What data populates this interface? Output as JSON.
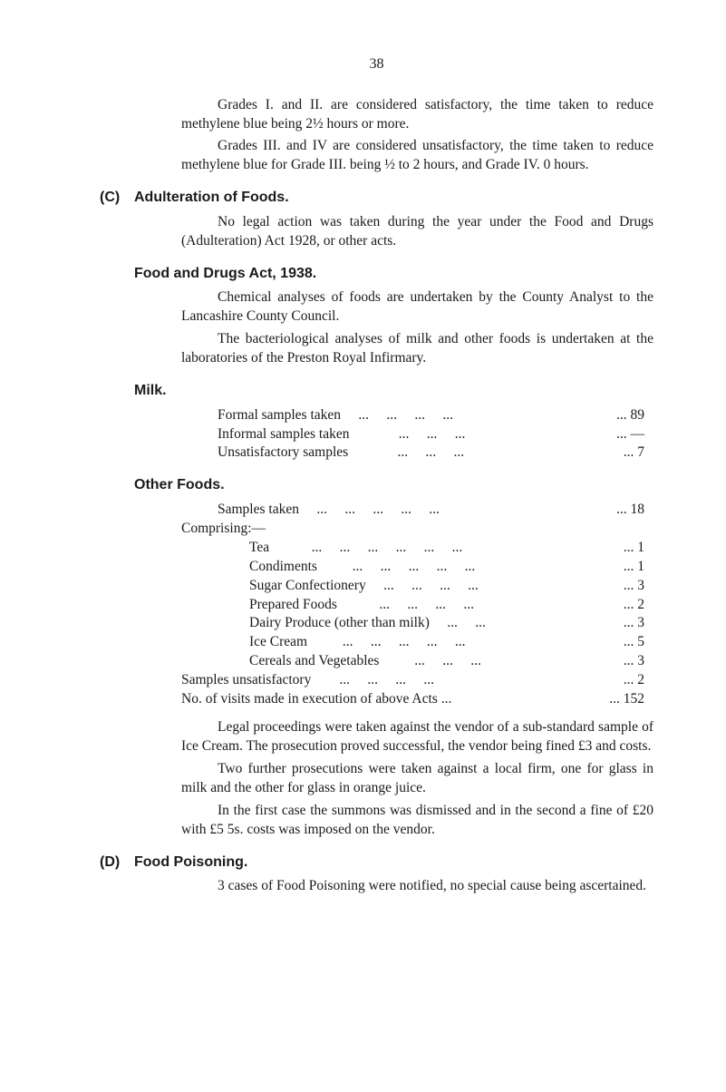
{
  "page_number": "38",
  "para1": "Grades I. and II. are considered satisfactory, the time taken to reduce methylene blue being 2½ hours or more.",
  "para2": "Grades III. and IV are considered unsatisfactory, the time taken to reduce methylene blue for Grade III. being ½ to 2 hours, and Grade IV. 0 hours.",
  "sectionC_marker": "(C)",
  "sectionC_title": "Adulteration of Foods.",
  "sectionC_para": "No legal action was taken during the year under the Food and Drugs (Adulteration) Act 1928, or other acts.",
  "foodDrugs_title": "Food and Drugs Act, 1938.",
  "foodDrugs_para1": "Chemical analyses of foods are undertaken by the County Analyst to the Lancashire County Council.",
  "foodDrugs_para2": "The bacteriological analyses of milk and other foods is undertaken at the laboratories of the Preston Royal Infirmary.",
  "milk_title": "Milk.",
  "milk_rows": [
    {
      "label": "Formal samples taken     ...     ...     ...     ...",
      "value": "...   89"
    },
    {
      "label": "Informal samples taken              ...     ...     ...",
      "value": "...   —"
    },
    {
      "label": "Unsatisfactory samples              ...     ...     ...",
      "value": "...     7"
    }
  ],
  "other_title": "Other Foods.",
  "other_samples": {
    "label": "Samples taken     ...     ...     ...     ...     ...",
    "value": "...     18"
  },
  "comprising": "Comprising:—",
  "other_rows": [
    {
      "label": "Tea            ...     ...     ...     ...     ...     ...",
      "value": "...       1"
    },
    {
      "label": "Condiments          ...     ...     ...     ...     ...",
      "value": "...       1"
    },
    {
      "label": "Sugar Confectionery     ...     ...     ...     ...",
      "value": "...       3"
    },
    {
      "label": "Prepared Foods            ...     ...     ...     ...",
      "value": "...       2"
    },
    {
      "label": "Dairy Produce (other than milk)     ...     ...",
      "value": "...       3"
    },
    {
      "label": "Ice Cream          ...     ...     ...     ...     ...",
      "value": "...       5"
    },
    {
      "label": "Cereals and Vegetables          ...     ...     ...",
      "value": "...       3"
    }
  ],
  "samples_unsat": {
    "label": "Samples unsatisfactory        ...     ...     ...     ...",
    "value": "...       2"
  },
  "visits": {
    "label": "No. of visits made in execution of above Acts ...",
    "value": "...   152"
  },
  "legal_para1": "Legal proceedings were taken against the vendor of a sub-standard sample of Ice Cream. The prosecution proved successful, the vendor being fined £3 and costs.",
  "legal_para2": "Two further prosecutions were taken against a local firm, one for glass in milk and the other for glass in orange juice.",
  "legal_para3": "In the first case the summons was dismissed and in the second a fine of £20 with £5 5s. costs was imposed on the vendor.",
  "sectionD_marker": "(D)",
  "sectionD_title": "Food Poisoning.",
  "sectionD_para": "3 cases of Food Poisoning were notified, no special cause being ascertained."
}
